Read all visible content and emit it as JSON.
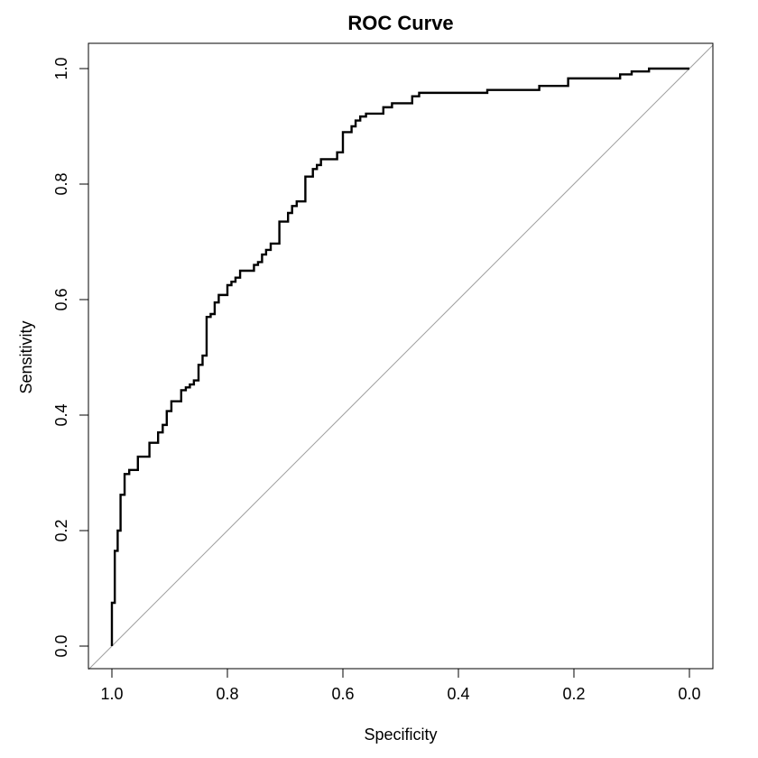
{
  "chart_data": {
    "type": "line",
    "title": "ROC Curve",
    "xlabel": "Specificity",
    "ylabel": "Sensitivity",
    "xlim": [
      1.0,
      0.0
    ],
    "ylim": [
      0.0,
      1.0
    ],
    "x_reversed": true,
    "grid": false,
    "x_ticks": [
      "1.0",
      "0.8",
      "0.6",
      "0.4",
      "0.2",
      "0.0"
    ],
    "y_ticks": [
      "0.0",
      "0.2",
      "0.4",
      "0.6",
      "0.8",
      "1.0"
    ],
    "series": [
      {
        "color": "#000000",
        "x": [
          1.0,
          1.0,
          0.995,
          0.995,
          0.99,
          0.99,
          0.985,
          0.985,
          0.978,
          0.978,
          0.97,
          0.97,
          0.955,
          0.955,
          0.935,
          0.935,
          0.92,
          0.92,
          0.912,
          0.912,
          0.905,
          0.905,
          0.897,
          0.897,
          0.88,
          0.88,
          0.872,
          0.872,
          0.865,
          0.865,
          0.858,
          0.858,
          0.85,
          0.85,
          0.843,
          0.843,
          0.836,
          0.836,
          0.829,
          0.829,
          0.822,
          0.822,
          0.815,
          0.815,
          0.8,
          0.8,
          0.793,
          0.793,
          0.786,
          0.786,
          0.778,
          0.778,
          0.754,
          0.754,
          0.747,
          0.747,
          0.74,
          0.74,
          0.733,
          0.733,
          0.725,
          0.725,
          0.71,
          0.71,
          0.695,
          0.695,
          0.688,
          0.688,
          0.68,
          0.68,
          0.665,
          0.665,
          0.652,
          0.652,
          0.645,
          0.645,
          0.638,
          0.638,
          0.61,
          0.61,
          0.6,
          0.6,
          0.585,
          0.585,
          0.578,
          0.578,
          0.57,
          0.57,
          0.56,
          0.56,
          0.53,
          0.53,
          0.515,
          0.515,
          0.48,
          0.48,
          0.468,
          0.468,
          0.35,
          0.35,
          0.26,
          0.26,
          0.21,
          0.21,
          0.12,
          0.12,
          0.1,
          0.1,
          0.07,
          0.07,
          0.0
        ],
        "y": [
          0.0,
          0.075,
          0.075,
          0.165,
          0.165,
          0.2,
          0.2,
          0.262,
          0.262,
          0.298,
          0.298,
          0.305,
          0.305,
          0.328,
          0.328,
          0.352,
          0.352,
          0.37,
          0.37,
          0.383,
          0.383,
          0.407,
          0.407,
          0.424,
          0.424,
          0.443,
          0.443,
          0.448,
          0.448,
          0.453,
          0.453,
          0.46,
          0.46,
          0.487,
          0.487,
          0.503,
          0.503,
          0.57,
          0.57,
          0.575,
          0.575,
          0.595,
          0.595,
          0.608,
          0.608,
          0.625,
          0.625,
          0.631,
          0.631,
          0.638,
          0.638,
          0.65,
          0.65,
          0.66,
          0.66,
          0.665,
          0.665,
          0.678,
          0.678,
          0.686,
          0.686,
          0.697,
          0.697,
          0.735,
          0.735,
          0.75,
          0.75,
          0.762,
          0.762,
          0.77,
          0.77,
          0.813,
          0.813,
          0.826,
          0.826,
          0.833,
          0.833,
          0.843,
          0.843,
          0.855,
          0.855,
          0.89,
          0.89,
          0.9,
          0.9,
          0.91,
          0.91,
          0.917,
          0.917,
          0.922,
          0.922,
          0.933,
          0.933,
          0.94,
          0.94,
          0.952,
          0.952,
          0.958,
          0.958,
          0.963,
          0.963,
          0.97,
          0.97,
          0.983,
          0.983,
          0.99,
          0.99,
          0.995,
          0.995,
          1.0,
          1.0
        ]
      }
    ],
    "reference_line": {
      "from": [
        1.0,
        0.0
      ],
      "to": [
        0.0,
        1.0
      ],
      "color": "#a0a0a0"
    }
  }
}
